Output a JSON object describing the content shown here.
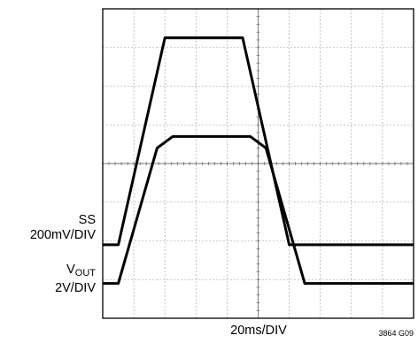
{
  "chart_data": {
    "type": "line",
    "title": "",
    "xlabel": "20ms/DIV",
    "ylabel": "",
    "figure_id": "3864 G09",
    "grid": true,
    "divisions": {
      "x": 10,
      "y": 8
    },
    "xlim": [
      0,
      200
    ],
    "ylim": [
      0,
      8
    ],
    "x_unit": "ms",
    "y_unit": "DIV",
    "series": [
      {
        "name": "SS",
        "scale_label": "200mV/DIV",
        "x": [
          0,
          10,
          40,
          50,
          70,
          90,
          120,
          200
        ],
        "y": [
          1.9,
          1.9,
          7.25,
          7.25,
          7.25,
          7.25,
          1.9,
          1.9
        ]
      },
      {
        "name": "VOUT",
        "name_base": "V",
        "name_sub": "OUT",
        "scale_label": "2V/DIV",
        "x": [
          0,
          10,
          35,
          45,
          95,
          105,
          130,
          200
        ],
        "y": [
          0.9,
          0.9,
          4.4,
          4.7,
          4.7,
          4.4,
          0.9,
          0.9
        ]
      }
    ]
  }
}
